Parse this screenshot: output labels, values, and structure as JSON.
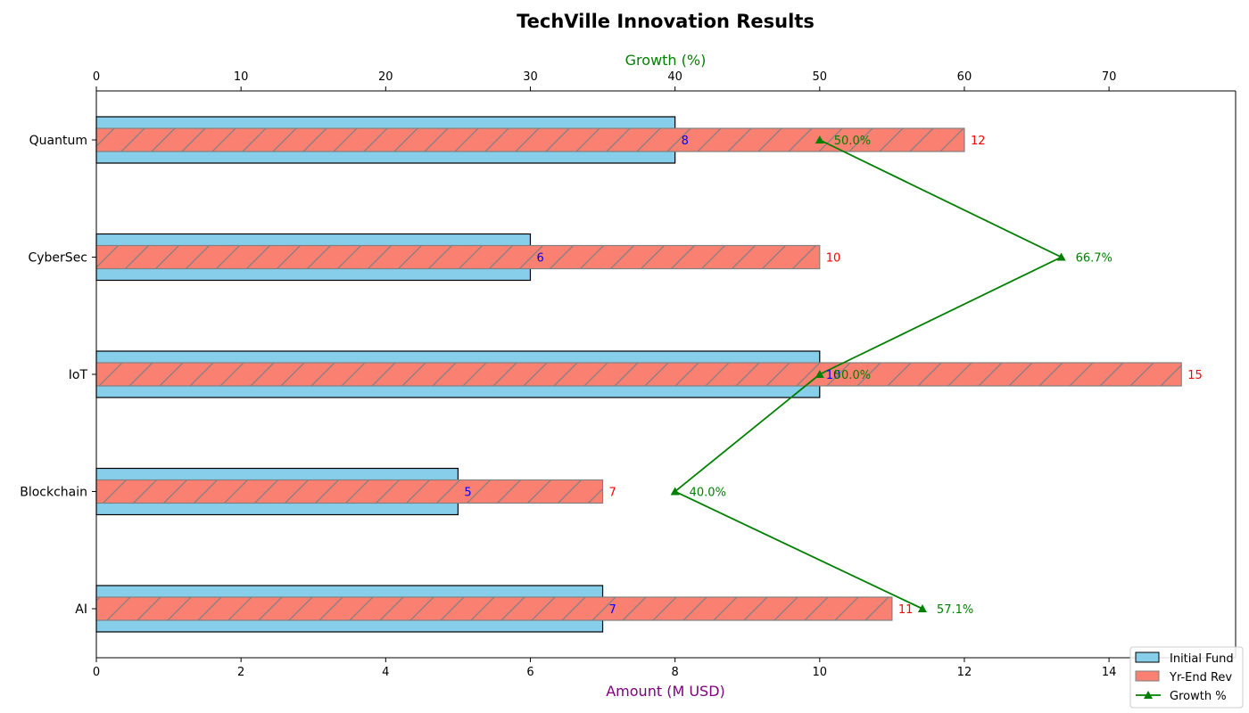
{
  "chart_data": {
    "type": "bar",
    "orientation": "horizontal",
    "title": "TechVille Innovation Results",
    "xlabel": "Amount (M USD)",
    "x2label": "Growth (%)",
    "categories": [
      "AI",
      "Blockchain",
      "IoT",
      "CyberSec",
      "Quantum"
    ],
    "xlim": [
      0,
      15.75
    ],
    "x2lim": [
      0,
      78.75
    ],
    "x_ticks": [
      0,
      2,
      4,
      6,
      8,
      10,
      12,
      14
    ],
    "x2_ticks": [
      0,
      10,
      20,
      30,
      40,
      50,
      60,
      70
    ],
    "series": [
      {
        "name": "Initial Fund",
        "type": "bar",
        "values": [
          7,
          5,
          10,
          6,
          8
        ],
        "color": "#87ceeb",
        "edge": "#000000",
        "label_color": "#0000ff"
      },
      {
        "name": "Yr-End Rev",
        "type": "bar",
        "values": [
          11,
          7,
          15,
          10,
          12
        ],
        "color": "#fa8072",
        "edge": "#808080",
        "hatch": "/",
        "label_color": "#ff0000"
      },
      {
        "name": "Growth %",
        "type": "line",
        "axis": "top",
        "values": [
          57.1,
          40.0,
          50.0,
          66.7,
          50.0
        ],
        "color": "#008000",
        "marker": "triangle"
      }
    ],
    "growth_labels": [
      "57.1%",
      "40.0%",
      "50.0%",
      "66.7%",
      "50.0%"
    ],
    "legend": {
      "placement": "bottom-right"
    },
    "colors": {
      "title": "#000000",
      "xlabel": "#800080",
      "x2label": "#008000"
    }
  }
}
